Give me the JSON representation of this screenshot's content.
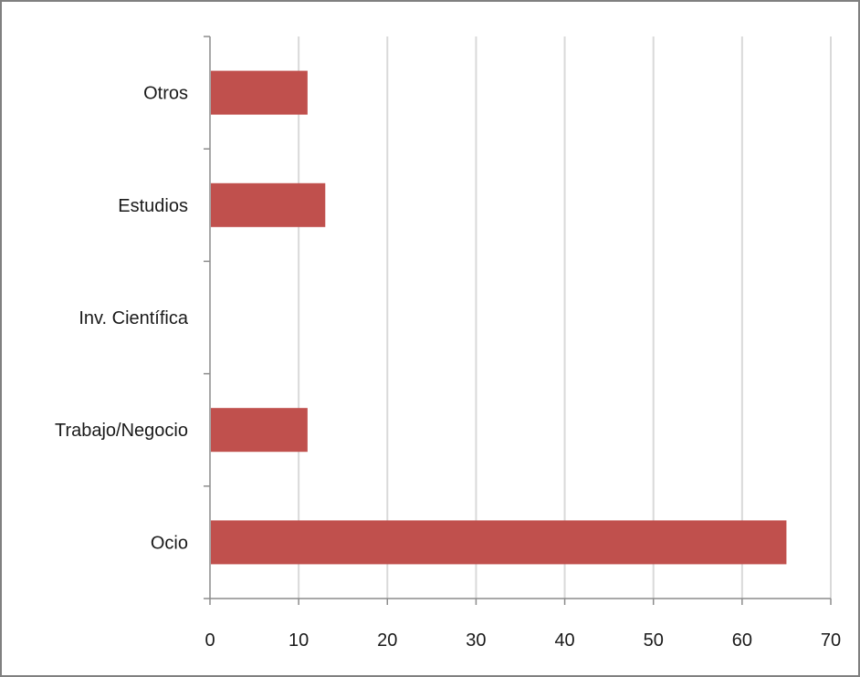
{
  "chart_data": {
    "type": "bar",
    "orientation": "horizontal",
    "categories": [
      "Ocio",
      "Trabajo/Negocio",
      "Inv. Científica",
      "Estudios",
      "Otros"
    ],
    "values": [
      65,
      11,
      0,
      13,
      11
    ],
    "xlim": [
      0,
      70
    ],
    "x_ticks": [
      0,
      10,
      20,
      30,
      40,
      50,
      60,
      70
    ],
    "grid": "vertical",
    "legend": "none",
    "colors": {
      "bar": "#c0504d",
      "grid": "#d9d9d9",
      "axis": "#8c8c8c",
      "frame": "#808080",
      "text": "#1a1a1a"
    }
  }
}
